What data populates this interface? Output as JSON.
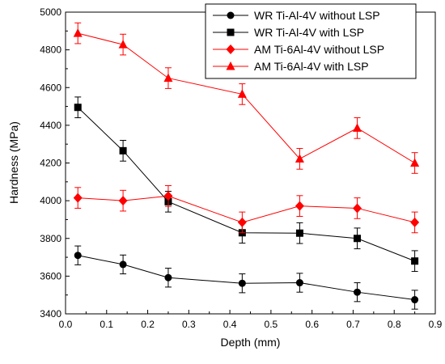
{
  "chart_data": {
    "type": "line",
    "xlabel": "Depth (mm)",
    "ylabel": "Hardness (MPa)",
    "xlim": [
      0.0,
      0.9
    ],
    "ylim": [
      3400,
      5000
    ],
    "x_ticks": [
      0.0,
      0.1,
      0.2,
      0.3,
      0.4,
      0.5,
      0.6,
      0.7,
      0.8,
      0.9
    ],
    "x_tick_labels": [
      "0.0",
      "0.1",
      "0.2",
      "0.3",
      "0.4",
      "0.5",
      "0.6",
      "0.7",
      "0.8",
      "0.9"
    ],
    "y_ticks": [
      3400,
      3600,
      3800,
      4000,
      4200,
      4400,
      4600,
      4800,
      5000
    ],
    "y_tick_labels": [
      "3400",
      "3600",
      "3800",
      "4000",
      "4200",
      "4400",
      "4600",
      "4800",
      "5000"
    ],
    "grid": false,
    "legend_position": "top-right",
    "x": [
      0.03,
      0.14,
      0.25,
      0.43,
      0.57,
      0.71,
      0.85
    ],
    "series": [
      {
        "name": "WR Ti-Al-4V without LSP",
        "values": [
          3710,
          3662,
          3592,
          3562,
          3565,
          3515,
          3475
        ],
        "errors": [
          50,
          50,
          50,
          50,
          50,
          50,
          50
        ],
        "color": "#000000",
        "marker": "circle"
      },
      {
        "name": "WR Ti-Al-4V with LSP",
        "values": [
          4495,
          4265,
          3995,
          3830,
          3828,
          3800,
          3680
        ],
        "errors": [
          55,
          55,
          55,
          55,
          55,
          55,
          55
        ],
        "color": "#000000",
        "marker": "square"
      },
      {
        "name": "AM Ti-6Al-4V without LSP",
        "values": [
          4015,
          4000,
          4025,
          3885,
          3972,
          3960,
          3885
        ],
        "errors": [
          55,
          55,
          55,
          55,
          55,
          55,
          55
        ],
        "color": "#ff0000",
        "marker": "diamond"
      },
      {
        "name": "AM Ti-6Al-4V with LSP",
        "values": [
          4888,
          4828,
          4650,
          4565,
          4222,
          4385,
          4200
        ],
        "errors": [
          55,
          55,
          55,
          55,
          55,
          55,
          55
        ],
        "color": "#ff0000",
        "marker": "triangle"
      }
    ]
  }
}
